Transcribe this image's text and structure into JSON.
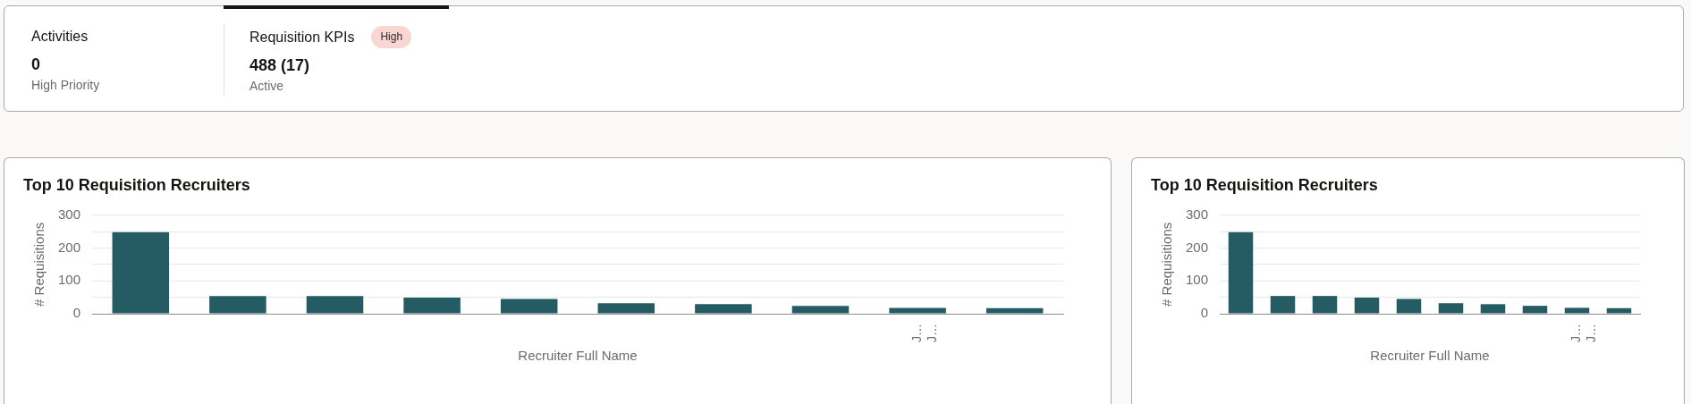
{
  "chart_data": [
    {
      "type": "other",
      "categories": [
        "Activities",
        "Requisition KPIs"
      ],
      "value_labels": [
        "0",
        "488 (17)"
      ],
      "annotations": [
        "High Priority",
        "Active",
        "High"
      ]
    },
    {
      "type": "bar",
      "title": "Top 10 Requisition Recruiters",
      "xlabel": "Recruiter Full Name",
      "ylabel": "# Requisitions",
      "categories": [
        null,
        null,
        null,
        null,
        null,
        null,
        null,
        null,
        "J… J…",
        null
      ],
      "values": [
        248,
        54,
        54,
        49,
        45,
        32,
        29,
        24,
        18,
        17
      ],
      "color": "#255c63",
      "ylim": [
        0,
        300
      ],
      "yticks": [
        0,
        {
          "value": 50,
          "label": null
        },
        100,
        {
          "value": 150,
          "label": null
        },
        200,
        {
          "value": 250,
          "label": null
        },
        300
      ],
      "grid": "y"
    },
    {
      "type": "bar",
      "title": "Top 10 Requisition Recruiters",
      "xlabel": "Recruiter Full Name",
      "ylabel": "# Requisitions",
      "categories": [
        null,
        null,
        null,
        null,
        null,
        null,
        null,
        null,
        "J… J…",
        null
      ],
      "values": [
        248,
        54,
        54,
        49,
        45,
        32,
        29,
        24,
        18,
        17
      ],
      "color": "#255c63",
      "ylim": [
        0,
        300
      ],
      "yticks": [
        0,
        {
          "value": 50,
          "label": null
        },
        100,
        {
          "value": 150,
          "label": null
        },
        200,
        {
          "value": 250,
          "label": null
        },
        300
      ],
      "grid": "y"
    }
  ]
}
